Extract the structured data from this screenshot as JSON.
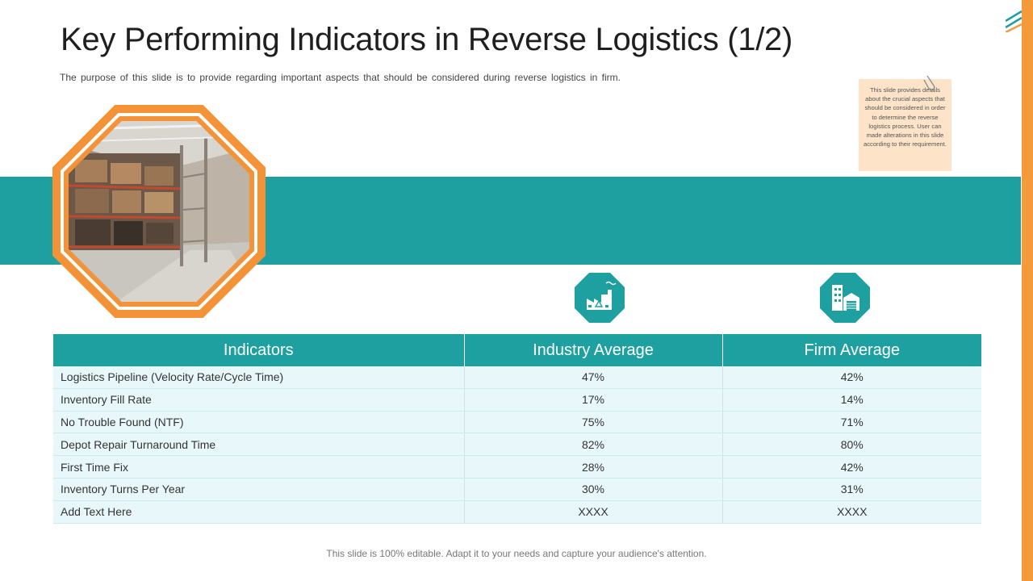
{
  "slide": {
    "title": "Key Performing Indicators in Reverse Logistics (1/2)",
    "subtitle": "The purpose of this slide is to provide regarding important aspects that should be considered during reverse logistics in firm.",
    "footer": "This slide is 100% editable. Adapt it to your needs and capture your audience's attention."
  },
  "note": {
    "text": "This slide provides details about the crucial aspects that should be considered in order to determine the reverse logistics process. User can made alterations in this slide according to their requirement."
  },
  "images": {
    "photo": "warehouse-photo",
    "industry_icon": "factory-icon",
    "firm_icon": "office-building-icon",
    "note_icon": "paperclip-icon"
  },
  "colors": {
    "teal": "#1ea0a1",
    "orange": "#f39237",
    "row_bg": "#e8f8fa",
    "note_bg": "#fde3c8"
  },
  "table": {
    "headers": [
      "Indicators",
      "Industry Average",
      "Firm Average"
    ],
    "rows": [
      [
        "Logistics Pipeline (Velocity Rate/Cycle Time)",
        "47%",
        "42%"
      ],
      [
        "Inventory Fill Rate",
        "17%",
        "14%"
      ],
      [
        "No Trouble Found (NTF)",
        "75%",
        "71%"
      ],
      [
        "Depot Repair Turnaround Time",
        "82%",
        "80%"
      ],
      [
        "First Time Fix",
        "28%",
        "42%"
      ],
      [
        "Inventory Turns Per Year",
        "30%",
        "31%"
      ],
      [
        "Add Text Here",
        "XXXX",
        "XXXX"
      ]
    ]
  }
}
